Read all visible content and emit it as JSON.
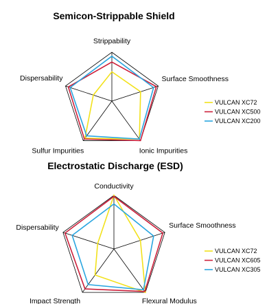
{
  "chart_data": [
    {
      "type": "radar",
      "title": "Semicon-Strippable Shield",
      "axes": [
        "Strippability",
        "Surface Smoothness",
        "Ionic Impurities",
        "Sulfur Impurities",
        "Dispersability"
      ],
      "range": [
        0,
        5
      ],
      "grid": false,
      "legend_position": "right",
      "series": [
        {
          "name": "VULCAN XC72",
          "color": "#f2e11a",
          "values": [
            3.0,
            3.1,
            4.8,
            4.7,
            2.0
          ]
        },
        {
          "name": "VULCAN XC500",
          "color": "#cc1f3a",
          "values": [
            4.0,
            4.8,
            5.0,
            4.8,
            4.7
          ]
        },
        {
          "name": "VULCAN XC200",
          "color": "#2aa6e0",
          "values": [
            4.6,
            4.5,
            4.8,
            4.4,
            4.5
          ]
        }
      ]
    },
    {
      "type": "radar",
      "title": "Electrostatic Discharge (ESD)",
      "axes": [
        "Conductivity",
        "Surface Smoothness",
        "Flexural Modulus",
        "Impact Strength",
        "Dispersability"
      ],
      "range": [
        0,
        5
      ],
      "grid": false,
      "legend_position": "right",
      "series": [
        {
          "name": "VULCAN XC72",
          "color": "#f2e11a",
          "values": [
            5.0,
            2.6,
            5.0,
            3.0,
            1.6
          ]
        },
        {
          "name": "VULCAN XC605",
          "color": "#cc1f3a",
          "values": [
            4.9,
            4.8,
            4.9,
            4.6,
            4.8
          ]
        },
        {
          "name": "VULCAN XC305",
          "color": "#2aa6e0",
          "values": [
            4.2,
            3.9,
            4.7,
            4.1,
            4.1
          ]
        }
      ]
    }
  ]
}
